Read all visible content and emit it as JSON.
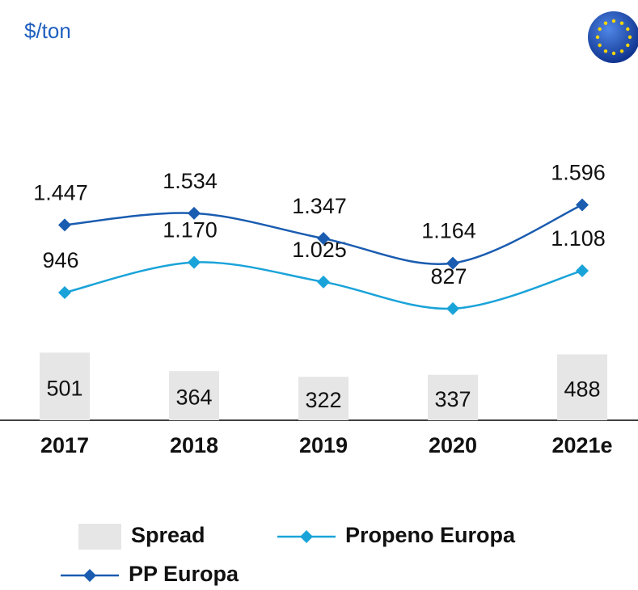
{
  "chart_data": {
    "type": "line",
    "title": "$/ton",
    "categories": [
      "2017",
      "2018",
      "2019",
      "2020",
      "2021e"
    ],
    "series": [
      {
        "name": "Spread",
        "type": "bar",
        "color": "#e6e6e6",
        "values": [
          501,
          364,
          322,
          337,
          488
        ]
      },
      {
        "name": "Propeno Europa",
        "type": "line",
        "color": "#1aa3d9",
        "values": [
          946,
          1170,
          1025,
          827,
          1108
        ],
        "value_labels": [
          "946",
          "1.170",
          "1.025",
          "827",
          "1.108"
        ]
      },
      {
        "name": "PP Europa",
        "type": "line",
        "color": "#1a5cb0",
        "values": [
          1447,
          1534,
          1347,
          1164,
          1596
        ],
        "value_labels": [
          "1.447",
          "1.534",
          "1.347",
          "1.164",
          "1.596"
        ]
      }
    ]
  }
}
